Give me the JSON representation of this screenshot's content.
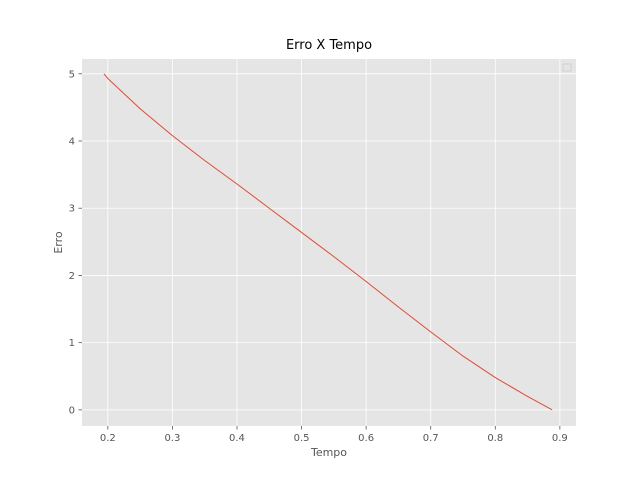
{
  "chart_data": {
    "type": "line",
    "title": "Erro X Tempo",
    "xlabel": "Tempo",
    "ylabel": "Erro",
    "xlim": [
      0.16,
      0.925
    ],
    "ylim": [
      -0.24,
      5.22
    ],
    "xticks": [
      0.2,
      0.3,
      0.4,
      0.5,
      0.6,
      0.7,
      0.8,
      0.9
    ],
    "yticks": [
      0,
      1,
      2,
      3,
      4,
      5
    ],
    "grid": true,
    "legend": "top-right (empty)",
    "colors": {
      "background": "#e5e5e5",
      "grid": "#ffffff",
      "line": "#e24a33",
      "tick_text": "#555555",
      "title_text": "#000000"
    },
    "series": [
      {
        "x": [
          0.194,
          0.2,
          0.25,
          0.3,
          0.35,
          0.4,
          0.45,
          0.5,
          0.55,
          0.6,
          0.65,
          0.7,
          0.75,
          0.8,
          0.85,
          0.888
        ],
        "y": [
          5.0,
          4.93,
          4.48,
          4.08,
          3.71,
          3.36,
          3.0,
          2.64,
          2.28,
          1.91,
          1.53,
          1.16,
          0.8,
          0.48,
          0.2,
          0.0
        ]
      }
    ]
  }
}
